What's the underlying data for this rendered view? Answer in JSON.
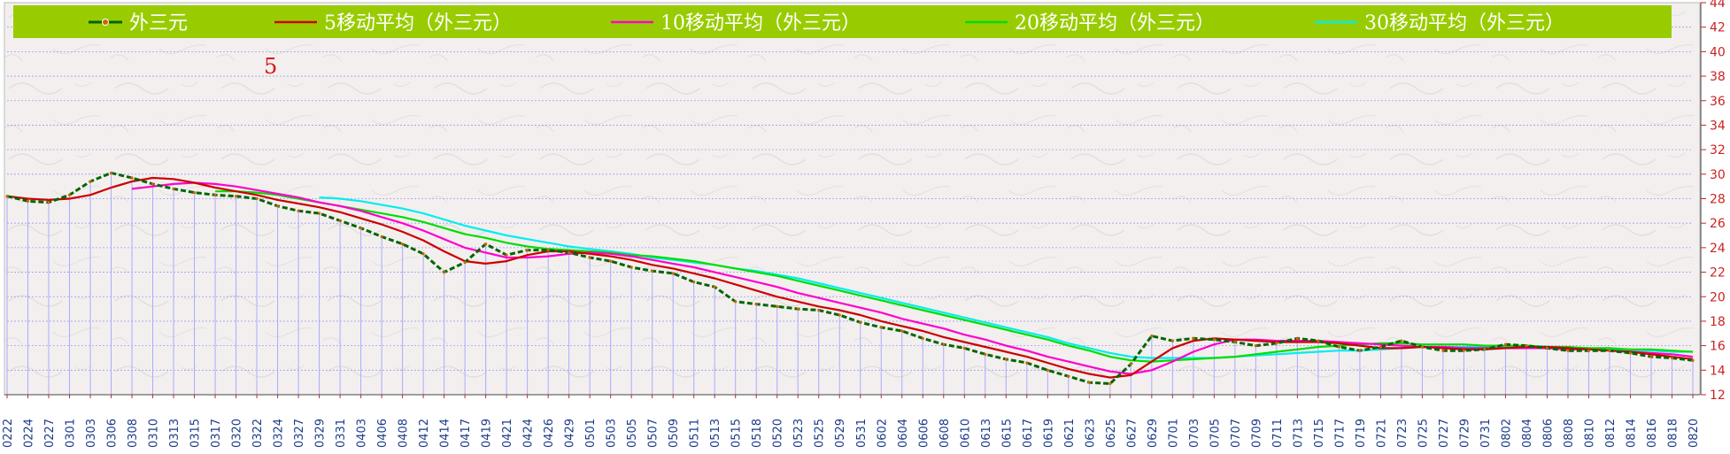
{
  "chart_data": {
    "type": "line",
    "annotation": "5",
    "ylim": [
      12,
      44
    ],
    "y_ticks": [
      12,
      14,
      16,
      18,
      20,
      22,
      24,
      26,
      28,
      30,
      32,
      34,
      36,
      38,
      40,
      42,
      44
    ],
    "grid": true,
    "legend_position": "top",
    "colors": {
      "legend_bar": "#99cc00",
      "base_series": "#006600",
      "base_marker": "#cc6600",
      "ma5": "#cc0000",
      "ma10": "#ff00cc",
      "ma20": "#00dd00",
      "ma30": "#00eeee",
      "bars": "#aaaaff",
      "grid": "#8888ee",
      "x_ticks": "#1a3a8a",
      "y_ticks": "#cc2222",
      "annotation": "#dd1111"
    },
    "x_tick_labels": [
      "0222",
      "0224",
      "0227",
      "0301",
      "0303",
      "0306",
      "0308",
      "0310",
      "0313",
      "0315",
      "0317",
      "0320",
      "0322",
      "0324",
      "0327",
      "0329",
      "0331",
      "0403",
      "0406",
      "0408",
      "0412",
      "0414",
      "0417",
      "0419",
      "0421",
      "0424",
      "0426",
      "0429",
      "0501",
      "0503",
      "0505",
      "0507",
      "0509",
      "0511",
      "0513",
      "0515",
      "0518",
      "0520",
      "0523",
      "0525",
      "0529",
      "0531",
      "0602",
      "0604",
      "0606",
      "0608",
      "0610",
      "0613",
      "0615",
      "0617",
      "0619",
      "0621",
      "0623",
      "0625",
      "0627",
      "0629",
      "0701",
      "0703",
      "0705",
      "0707",
      "0709",
      "0711",
      "0713",
      "0715",
      "0717",
      "0719",
      "0721",
      "0723",
      "0725",
      "0727",
      "0729",
      "0731",
      "0802",
      "0804",
      "0806",
      "0808",
      "0810",
      "0812",
      "0814",
      "0816",
      "0818",
      "0820"
    ],
    "series": [
      {
        "name": "外三元",
        "values": [
          28.2,
          27.8,
          27.7,
          28.3,
          29.4,
          30.1,
          29.7,
          29.2,
          28.8,
          28.5,
          28.3,
          28.2,
          28.0,
          27.4,
          27.0,
          26.8,
          26.2,
          25.6,
          24.9,
          24.3,
          23.5,
          22.0,
          22.8,
          24.3,
          23.4,
          23.8,
          23.8,
          23.6,
          23.2,
          22.9,
          22.4,
          22.1,
          21.9,
          21.2,
          20.8,
          19.6,
          19.4,
          19.2,
          19.0,
          18.9,
          18.5,
          17.9,
          17.5,
          17.2,
          16.6,
          16.1,
          15.8,
          15.3,
          14.9,
          14.6,
          14.0,
          13.5,
          13.0,
          12.9,
          14.5,
          16.8,
          16.4,
          16.6,
          16.5,
          16.3,
          16.0,
          16.2,
          16.6,
          16.4,
          15.9,
          15.6,
          15.9,
          16.4,
          15.9,
          15.6,
          15.6,
          15.7,
          16.1,
          16.0,
          15.8,
          15.6,
          15.6,
          15.6,
          15.4,
          15.1,
          15.0,
          14.8
        ]
      },
      {
        "name": "5移动平均（外三元）",
        "values": [
          28.2,
          28.0,
          27.9,
          28.0,
          28.3,
          28.9,
          29.4,
          29.7,
          29.6,
          29.3,
          28.9,
          28.6,
          28.3,
          27.9,
          27.6,
          27.3,
          26.9,
          26.4,
          25.9,
          25.3,
          24.6,
          23.7,
          22.9,
          22.7,
          22.9,
          23.4,
          23.7,
          23.7,
          23.5,
          23.3,
          23.0,
          22.6,
          22.3,
          21.9,
          21.5,
          21.0,
          20.5,
          20.0,
          19.6,
          19.2,
          18.9,
          18.5,
          18.0,
          17.6,
          17.2,
          16.7,
          16.3,
          15.9,
          15.5,
          15.1,
          14.6,
          14.1,
          13.7,
          13.4,
          13.6,
          14.7,
          15.8,
          16.4,
          16.6,
          16.5,
          16.4,
          16.3,
          16.3,
          16.3,
          16.2,
          16.0,
          15.8,
          15.8,
          15.9,
          15.8,
          15.7,
          15.7,
          15.8,
          15.9,
          15.9,
          15.8,
          15.7,
          15.6,
          15.5,
          15.3,
          15.1,
          14.9
        ]
      },
      {
        "name": "10移动平均（外三元）",
        "values": [
          null,
          null,
          null,
          null,
          null,
          null,
          28.8,
          29.0,
          29.2,
          29.3,
          29.2,
          29.0,
          28.7,
          28.4,
          28.1,
          27.7,
          27.4,
          27.0,
          26.5,
          26.0,
          25.4,
          24.7,
          24.0,
          23.6,
          23.2,
          23.2,
          23.3,
          23.5,
          23.6,
          23.5,
          23.3,
          23.0,
          22.7,
          22.4,
          22.0,
          21.6,
          21.2,
          20.8,
          20.3,
          19.9,
          19.5,
          19.1,
          18.7,
          18.2,
          17.8,
          17.4,
          16.9,
          16.5,
          16.0,
          15.6,
          15.1,
          14.7,
          14.3,
          13.9,
          13.7,
          14.0,
          14.7,
          15.5,
          16.1,
          16.5,
          16.5,
          16.4,
          16.4,
          16.4,
          16.3,
          16.2,
          16.1,
          16.0,
          15.9,
          15.9,
          15.8,
          15.8,
          15.8,
          15.8,
          15.8,
          15.7,
          15.7,
          15.6,
          15.5,
          15.4,
          15.3,
          15.1
        ]
      },
      {
        "name": "20移动平均（外三元）",
        "values": [
          null,
          null,
          null,
          null,
          null,
          null,
          null,
          null,
          null,
          null,
          28.6,
          28.6,
          28.5,
          28.3,
          28.0,
          27.7,
          27.4,
          27.1,
          26.8,
          26.5,
          26.1,
          25.6,
          25.1,
          24.8,
          24.4,
          24.1,
          23.9,
          23.8,
          23.7,
          23.6,
          23.4,
          23.3,
          23.1,
          22.9,
          22.6,
          22.3,
          22.0,
          21.7,
          21.3,
          20.9,
          20.5,
          20.1,
          19.7,
          19.3,
          18.9,
          18.5,
          18.1,
          17.7,
          17.3,
          16.9,
          16.5,
          16.0,
          15.6,
          15.1,
          14.8,
          14.7,
          14.8,
          14.9,
          15.0,
          15.1,
          15.3,
          15.5,
          15.7,
          15.9,
          16.0,
          16.1,
          16.2,
          16.2,
          16.1,
          16.1,
          16.1,
          16.0,
          16.0,
          16.0,
          15.9,
          15.9,
          15.8,
          15.8,
          15.7,
          15.7,
          15.6,
          15.5
        ]
      },
      {
        "name": "30移动平均（外三元）",
        "values": [
          null,
          null,
          null,
          null,
          null,
          null,
          null,
          null,
          null,
          null,
          null,
          null,
          null,
          null,
          null,
          28.1,
          28.0,
          27.8,
          27.5,
          27.2,
          26.8,
          26.3,
          25.8,
          25.4,
          25.0,
          24.7,
          24.4,
          24.1,
          23.9,
          23.7,
          23.5,
          23.2,
          23.0,
          22.8,
          22.6,
          22.3,
          22.1,
          21.8,
          21.5,
          21.1,
          20.7,
          20.3,
          19.9,
          19.5,
          19.1,
          18.7,
          18.3,
          17.9,
          17.5,
          17.1,
          16.7,
          16.2,
          15.8,
          15.4,
          15.1,
          15.0,
          15.0,
          15.0,
          15.0,
          15.1,
          15.2,
          15.3,
          15.4,
          15.5,
          15.6,
          15.6,
          15.7,
          15.8,
          15.9,
          15.9,
          15.9,
          15.9,
          15.9,
          15.9,
          15.8,
          15.8,
          15.7,
          15.7,
          15.6,
          15.6,
          15.5,
          15.5
        ]
      }
    ]
  }
}
